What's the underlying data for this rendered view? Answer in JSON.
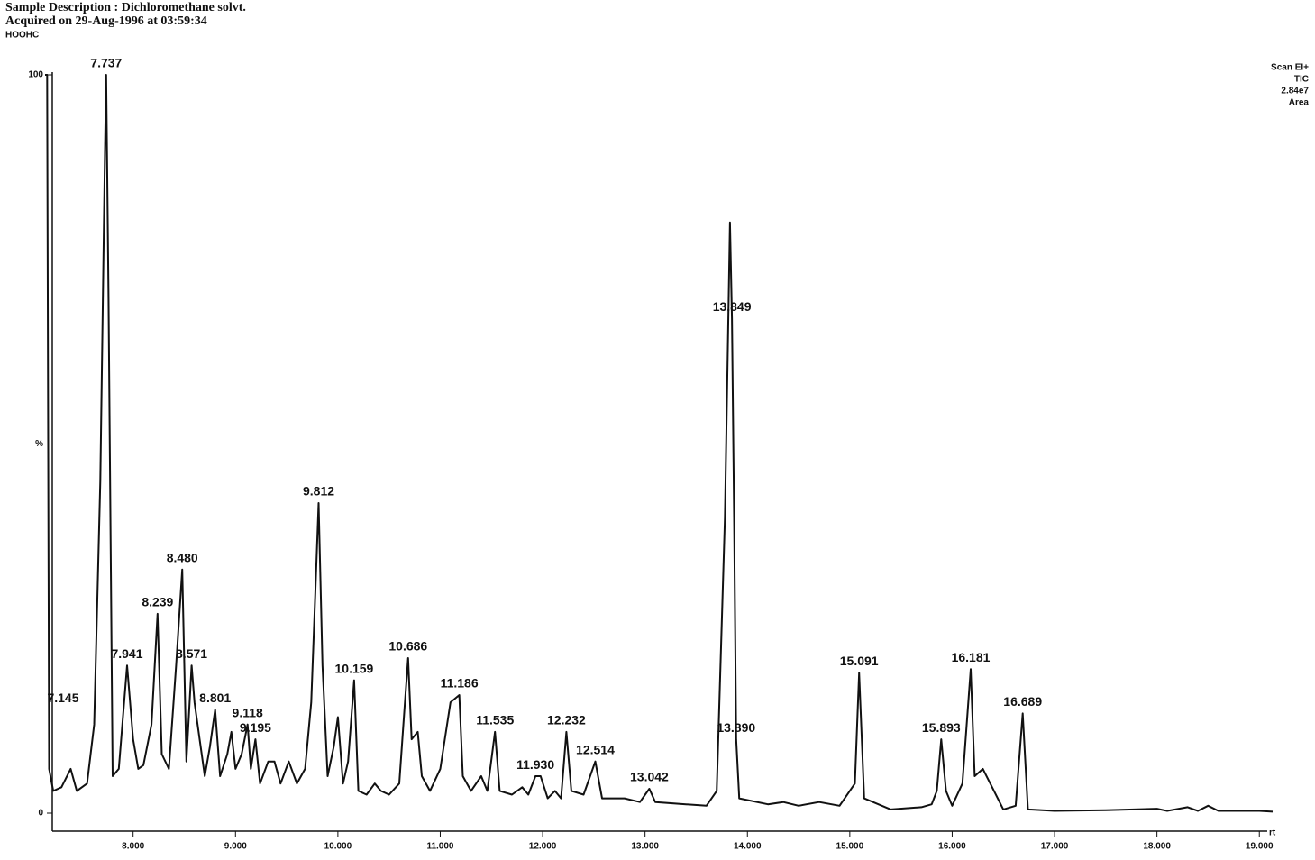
{
  "chart_data": {
    "type": "line",
    "header": [
      "Sample Description : Dichloromethane solvt.",
      "Acquired on 29-Aug-1996 at 03:59:34",
      "HOOHC"
    ],
    "side_labels": [
      "Scan EI+",
      "TIC",
      "2.84e7",
      "Area"
    ],
    "xlabel": "rt",
    "x": [
      7.14,
      7.16,
      7.18,
      7.22,
      7.3,
      7.39,
      7.45,
      7.55,
      7.62,
      7.68,
      7.72,
      7.737,
      7.76,
      7.8,
      7.86,
      7.941,
      8.0,
      8.05,
      8.1,
      8.18,
      8.239,
      8.28,
      8.35,
      8.42,
      8.48,
      8.52,
      8.571,
      8.6,
      8.65,
      8.7,
      8.75,
      8.801,
      8.85,
      8.92,
      8.96,
      9.0,
      9.06,
      9.118,
      9.15,
      9.195,
      9.24,
      9.32,
      9.38,
      9.44,
      9.52,
      9.6,
      9.68,
      9.74,
      9.78,
      9.812,
      9.85,
      9.9,
      9.96,
      10.0,
      10.05,
      10.1,
      10.159,
      10.2,
      10.28,
      10.36,
      10.42,
      10.5,
      10.6,
      10.65,
      10.686,
      10.72,
      10.78,
      10.82,
      10.9,
      11.0,
      11.1,
      11.186,
      11.22,
      11.3,
      11.4,
      11.46,
      11.535,
      11.58,
      11.7,
      11.8,
      11.86,
      11.93,
      11.98,
      12.05,
      12.12,
      12.18,
      12.232,
      12.28,
      12.4,
      12.514,
      12.58,
      12.8,
      12.95,
      13.042,
      13.1,
      13.4,
      13.6,
      13.7,
      13.78,
      13.83,
      13.849,
      13.87,
      13.89,
      13.92,
      14.2,
      14.35,
      14.5,
      14.7,
      14.9,
      15.05,
      15.091,
      15.14,
      15.4,
      15.7,
      15.8,
      15.85,
      15.893,
      15.94,
      16.0,
      16.1,
      16.181,
      16.22,
      16.3,
      16.5,
      16.62,
      16.689,
      16.74,
      17.0,
      17.5,
      18.0,
      18.1,
      18.3,
      18.4,
      18.5,
      18.6,
      19.0,
      19.13
    ],
    "series": [
      {
        "color": "#111111",
        "values": [
          100,
          100,
          6,
          3,
          3.5,
          6,
          3,
          4,
          12,
          45,
          85,
          100,
          70,
          5,
          6,
          20,
          10,
          6,
          6.5,
          12,
          27,
          8,
          6,
          20,
          33,
          7,
          20,
          15,
          10,
          5,
          9,
          14,
          5,
          8,
          11,
          6,
          8,
          12,
          6,
          10,
          4,
          7,
          7,
          4,
          7,
          4,
          6,
          15,
          30,
          42,
          20,
          5,
          9,
          13,
          4,
          7,
          18,
          3,
          2.5,
          4,
          3,
          2.5,
          4,
          14,
          21,
          10,
          11,
          5,
          3,
          6,
          15,
          16,
          5,
          3,
          5,
          3,
          11,
          3,
          2.5,
          3.5,
          2.5,
          5,
          5,
          2,
          3,
          2,
          11,
          3,
          2.5,
          7,
          2,
          2,
          1.5,
          3.3,
          1.5,
          1.2,
          1,
          3,
          40,
          80,
          67,
          40,
          10,
          2,
          1.2,
          1.5,
          1,
          1.5,
          1,
          4,
          19,
          2,
          0.5,
          0.8,
          1.2,
          3,
          10,
          3,
          1,
          4,
          19.5,
          5,
          6,
          0.5,
          1,
          13.5,
          0.5,
          0.3,
          0.4,
          0.6,
          0.3,
          0.8,
          0.3,
          1.0,
          0.3,
          0.3,
          0.2
        ]
      }
    ],
    "annotations": [
      {
        "text": "7.145",
        "x": 7.145,
        "y": 14
      },
      {
        "text": "7.737",
        "x": 7.737,
        "y": 100
      },
      {
        "text": "7.941",
        "x": 7.941,
        "y": 20
      },
      {
        "text": "8.239",
        "x": 8.239,
        "y": 27
      },
      {
        "text": "8.480",
        "x": 8.48,
        "y": 33
      },
      {
        "text": "8.571",
        "x": 8.571,
        "y": 20
      },
      {
        "text": "8.801",
        "x": 8.801,
        "y": 14
      },
      {
        "text": "9.118",
        "x": 9.118,
        "y": 12
      },
      {
        "text": "9.195",
        "x": 9.195,
        "y": 10
      },
      {
        "text": "9.812",
        "x": 9.812,
        "y": 42
      },
      {
        "text": "10.159",
        "x": 10.159,
        "y": 18
      },
      {
        "text": "10.686",
        "x": 10.686,
        "y": 21
      },
      {
        "text": "11.186",
        "x": 11.186,
        "y": 16
      },
      {
        "text": "11.535",
        "x": 11.535,
        "y": 11
      },
      {
        "text": "11.930",
        "x": 11.93,
        "y": 5
      },
      {
        "text": "12.232",
        "x": 12.232,
        "y": 11
      },
      {
        "text": "12.514",
        "x": 12.514,
        "y": 7
      },
      {
        "text": "13.042",
        "x": 13.042,
        "y": 3.3
      },
      {
        "text": "13.849",
        "x": 13.849,
        "y": 67
      },
      {
        "text": "13.890",
        "x": 13.89,
        "y": 10
      },
      {
        "text": "15.091",
        "x": 15.091,
        "y": 19
      },
      {
        "text": "15.893",
        "x": 15.893,
        "y": 10
      },
      {
        "text": "16.181",
        "x": 16.181,
        "y": 19.5
      },
      {
        "text": "16.689",
        "x": 16.689,
        "y": 13.5
      }
    ],
    "xlim": [
      7.14,
      19.13
    ],
    "ylim": [
      0,
      100
    ],
    "xticks": [
      {
        "value": 8,
        "label": "8.000"
      },
      {
        "value": 9,
        "label": "9.000"
      },
      {
        "value": 10,
        "label": "10.000"
      },
      {
        "value": 11,
        "label": "11.000"
      },
      {
        "value": 12,
        "label": "12.000"
      },
      {
        "value": 13,
        "label": "13.000"
      },
      {
        "value": 14,
        "label": "14.000"
      },
      {
        "value": 15,
        "label": "15.000"
      },
      {
        "value": 16,
        "label": "16.000"
      },
      {
        "value": 17,
        "label": "17.000"
      },
      {
        "value": 18,
        "label": "18.000"
      },
      {
        "value": 19,
        "label": "19.000"
      }
    ],
    "yticks": [
      0,
      {
        "value": 50,
        "label": "%"
      },
      100
    ],
    "grid": false
  }
}
